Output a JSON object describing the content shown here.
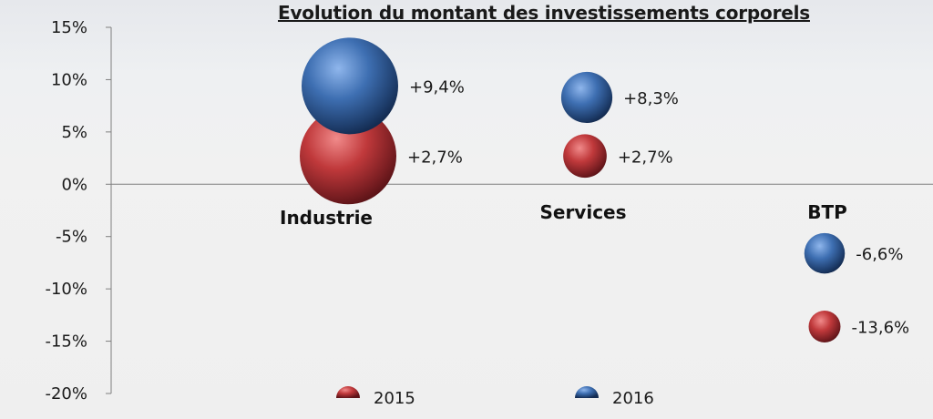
{
  "chart_data": {
    "type": "bubble",
    "title": "Evolution du montant des investissements corporels",
    "xlabel": "",
    "ylabel": "",
    "ylim": [
      -0.2,
      0.15
    ],
    "yticks": [
      "15%",
      "10%",
      "5%",
      "0%",
      "-5%",
      "-10%",
      "-15%",
      "-20%"
    ],
    "categories": [
      "Industrie",
      "Services",
      "BTP"
    ],
    "legend_position": "bottom",
    "series": [
      {
        "name": "2015",
        "color": "#c0393b",
        "values": [
          0.027,
          0.027,
          -0.136
        ],
        "labels": [
          "+2,7%",
          "+2,7%",
          "-13,6%"
        ],
        "sizes": [
          1.0,
          0.45,
          0.33
        ]
      },
      {
        "name": "2016",
        "color": "#3e6fb2",
        "values": [
          0.094,
          0.083,
          -0.066
        ],
        "labels": [
          "+9,4%",
          "+8,3%",
          "-6,6%"
        ],
        "sizes": [
          1.0,
          0.53,
          0.42
        ]
      }
    ]
  }
}
